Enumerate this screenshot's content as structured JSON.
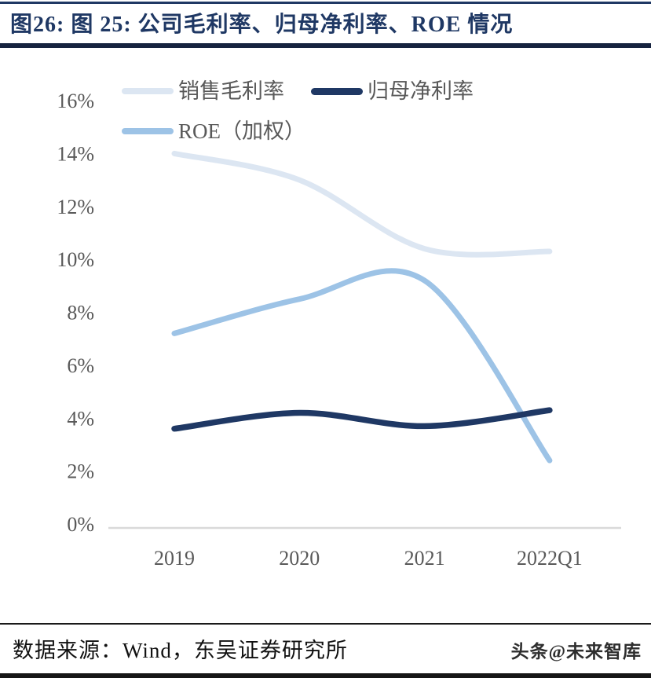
{
  "header": {
    "title": "图26: 图 25: 公司毛利率、归母净利率、ROE 情况"
  },
  "footer": {
    "source": "数据来源：Wind，东吴证券研究所",
    "watermark": "头条@未来智库"
  },
  "colors": {
    "title": "#1f3864",
    "gross_margin": "#dce6f2",
    "net_margin": "#1f3864",
    "roe": "#9dc3e6",
    "axis_line": "#d9d9d9",
    "tick_text": "#595959"
  },
  "chart_data": {
    "type": "line",
    "smooth": true,
    "grid": false,
    "legend_position": "top-left",
    "categories": [
      "2019",
      "2020",
      "2021",
      "2022Q1"
    ],
    "series": [
      {
        "name": "销售毛利率",
        "color_key": "gross_margin",
        "values": [
          14.0,
          13.0,
          10.4,
          10.3
        ]
      },
      {
        "name": "归母净利率",
        "color_key": "net_margin",
        "values": [
          3.6,
          4.2,
          3.7,
          4.3
        ]
      },
      {
        "name": "ROE（加权）",
        "color_key": "roe",
        "values": [
          7.2,
          8.5,
          9.2,
          2.4
        ]
      }
    ],
    "ylim": [
      0,
      16
    ],
    "ytick_step": 2,
    "ytick_labels": [
      "0%",
      "2%",
      "4%",
      "6%",
      "8%",
      "10%",
      "12%",
      "14%",
      "16%"
    ]
  }
}
